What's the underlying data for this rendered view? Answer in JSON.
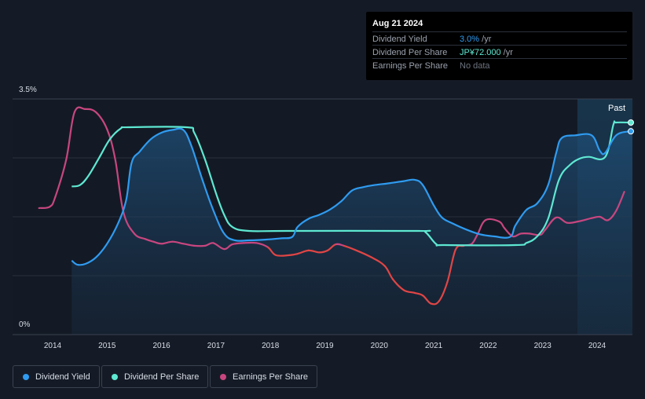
{
  "tooltip": {
    "date": "Aug 21 2024",
    "rows": [
      {
        "label": "Dividend Yield",
        "value": "3.0%",
        "unit": " /yr"
      },
      {
        "label": "Dividend Per Share",
        "value": "JP¥72.000",
        "unit": " /yr"
      },
      {
        "label": "Earnings Per Share",
        "value": "No data",
        "unit": ""
      }
    ]
  },
  "legend": [
    "Dividend Yield",
    "Dividend Per Share",
    "Earnings Per Share"
  ],
  "past_label": "Past",
  "colors": {
    "dividend_yield": "#2f9bf0",
    "dividend_per_share": "#5ee8d2",
    "eps_positive": "#c8467f",
    "eps_negative": "#e04545",
    "background": "#151b26",
    "grid": "#2a303b"
  },
  "chart_data": {
    "type": "line",
    "title": "",
    "xlabel": "",
    "ylabel": "",
    "y_tick_labels": [
      "3.5%",
      "0%"
    ],
    "ylim": [
      0,
      3.5
    ],
    "x_ticks": [
      "2014",
      "2015",
      "2016",
      "2017",
      "2018",
      "2019",
      "2020",
      "2021",
      "2022",
      "2023",
      "2024"
    ],
    "xlim": [
      2013.5,
      2024.65
    ],
    "forecast_start": 2023.65,
    "series": [
      {
        "name": "Dividend Yield",
        "unit": "%",
        "points": [
          [
            2014.35,
            1.1
          ],
          [
            2014.45,
            1.04
          ],
          [
            2014.6,
            1.05
          ],
          [
            2014.8,
            1.15
          ],
          [
            2015.0,
            1.35
          ],
          [
            2015.2,
            1.65
          ],
          [
            2015.35,
            2.0
          ],
          [
            2015.45,
            2.55
          ],
          [
            2015.6,
            2.72
          ],
          [
            2015.8,
            2.9
          ],
          [
            2016.0,
            3.0
          ],
          [
            2016.2,
            3.04
          ],
          [
            2016.4,
            3.04
          ],
          [
            2016.55,
            2.8
          ],
          [
            2016.75,
            2.3
          ],
          [
            2016.95,
            1.85
          ],
          [
            2017.15,
            1.5
          ],
          [
            2017.35,
            1.4
          ],
          [
            2017.6,
            1.4
          ],
          [
            2017.9,
            1.41
          ],
          [
            2018.2,
            1.43
          ],
          [
            2018.4,
            1.45
          ],
          [
            2018.5,
            1.6
          ],
          [
            2018.7,
            1.72
          ],
          [
            2018.9,
            1.78
          ],
          [
            2019.1,
            1.86
          ],
          [
            2019.3,
            1.98
          ],
          [
            2019.5,
            2.14
          ],
          [
            2019.7,
            2.19
          ],
          [
            2019.9,
            2.22
          ],
          [
            2020.2,
            2.25
          ],
          [
            2020.45,
            2.28
          ],
          [
            2020.65,
            2.3
          ],
          [
            2020.8,
            2.22
          ],
          [
            2021.0,
            1.92
          ],
          [
            2021.15,
            1.74
          ],
          [
            2021.35,
            1.65
          ],
          [
            2021.6,
            1.56
          ],
          [
            2021.85,
            1.49
          ],
          [
            2022.1,
            1.46
          ],
          [
            2022.4,
            1.45
          ],
          [
            2022.5,
            1.62
          ],
          [
            2022.7,
            1.85
          ],
          [
            2022.9,
            1.95
          ],
          [
            2023.1,
            2.22
          ],
          [
            2023.25,
            2.7
          ],
          [
            2023.35,
            2.92
          ],
          [
            2023.6,
            2.96
          ],
          [
            2023.9,
            2.96
          ],
          [
            2024.05,
            2.73
          ],
          [
            2024.15,
            2.7
          ],
          [
            2024.35,
            2.96
          ],
          [
            2024.6,
            3.02
          ]
        ]
      },
      {
        "name": "Dividend Per Share",
        "unit": "JP¥",
        "points": [
          [
            2014.35,
            2.2
          ],
          [
            2014.5,
            2.22
          ],
          [
            2014.65,
            2.35
          ],
          [
            2014.85,
            2.62
          ],
          [
            2015.05,
            2.9
          ],
          [
            2015.25,
            3.06
          ],
          [
            2015.4,
            3.08
          ],
          [
            2016.45,
            3.08
          ],
          [
            2016.6,
            3.0
          ],
          [
            2016.8,
            2.6
          ],
          [
            2017.0,
            2.1
          ],
          [
            2017.15,
            1.78
          ],
          [
            2017.3,
            1.6
          ],
          [
            2017.6,
            1.54
          ],
          [
            2018.3,
            1.54
          ],
          [
            2020.7,
            1.54
          ],
          [
            2020.85,
            1.52
          ],
          [
            2021.05,
            1.34
          ],
          [
            2021.2,
            1.33
          ],
          [
            2022.5,
            1.33
          ],
          [
            2022.7,
            1.36
          ],
          [
            2022.9,
            1.46
          ],
          [
            2023.1,
            1.72
          ],
          [
            2023.3,
            2.3
          ],
          [
            2023.5,
            2.52
          ],
          [
            2023.7,
            2.62
          ],
          [
            2023.85,
            2.64
          ],
          [
            2024.15,
            2.64
          ],
          [
            2024.3,
            3.12
          ],
          [
            2024.35,
            3.15
          ],
          [
            2024.6,
            3.15
          ]
        ]
      },
      {
        "name": "Earnings Per Share",
        "unit": "JP¥",
        "points": [
          [
            2013.75,
            1.88
          ],
          [
            2013.95,
            1.9
          ],
          [
            2014.05,
            2.05
          ],
          [
            2014.25,
            2.6
          ],
          [
            2014.4,
            3.3
          ],
          [
            2014.6,
            3.35
          ],
          [
            2014.8,
            3.3
          ],
          [
            2015.0,
            3.05
          ],
          [
            2015.15,
            2.6
          ],
          [
            2015.3,
            1.82
          ],
          [
            2015.5,
            1.5
          ],
          [
            2015.7,
            1.42
          ],
          [
            2015.85,
            1.38
          ],
          [
            2016.0,
            1.35
          ],
          [
            2016.2,
            1.38
          ],
          [
            2016.4,
            1.35
          ],
          [
            2016.6,
            1.32
          ],
          [
            2016.8,
            1.32
          ],
          [
            2016.95,
            1.36
          ],
          [
            2017.15,
            1.27
          ],
          [
            2017.3,
            1.34
          ],
          [
            2017.5,
            1.36
          ],
          [
            2017.75,
            1.36
          ],
          [
            2017.95,
            1.3
          ],
          [
            2018.1,
            1.18
          ],
          [
            2018.35,
            1.18
          ],
          [
            2018.5,
            1.2
          ],
          [
            2018.7,
            1.25
          ],
          [
            2018.9,
            1.22
          ],
          [
            2019.05,
            1.25
          ],
          [
            2019.2,
            1.34
          ],
          [
            2019.35,
            1.32
          ],
          [
            2019.55,
            1.26
          ],
          [
            2019.85,
            1.15
          ],
          [
            2020.1,
            1.02
          ],
          [
            2020.25,
            0.82
          ],
          [
            2020.45,
            0.66
          ],
          [
            2020.65,
            0.62
          ],
          [
            2020.8,
            0.58
          ],
          [
            2020.95,
            0.46
          ],
          [
            2021.1,
            0.5
          ],
          [
            2021.25,
            0.78
          ],
          [
            2021.4,
            1.26
          ],
          [
            2021.55,
            1.32
          ],
          [
            2021.7,
            1.35
          ],
          [
            2021.8,
            1.48
          ],
          [
            2021.95,
            1.7
          ],
          [
            2022.2,
            1.68
          ],
          [
            2022.3,
            1.58
          ],
          [
            2022.45,
            1.46
          ],
          [
            2022.6,
            1.5
          ],
          [
            2022.75,
            1.5
          ],
          [
            2022.95,
            1.48
          ],
          [
            2023.05,
            1.56
          ],
          [
            2023.25,
            1.74
          ],
          [
            2023.45,
            1.66
          ],
          [
            2023.65,
            1.68
          ],
          [
            2023.9,
            1.73
          ],
          [
            2024.05,
            1.75
          ],
          [
            2024.2,
            1.7
          ],
          [
            2024.35,
            1.84
          ],
          [
            2024.5,
            2.12
          ]
        ]
      }
    ]
  }
}
